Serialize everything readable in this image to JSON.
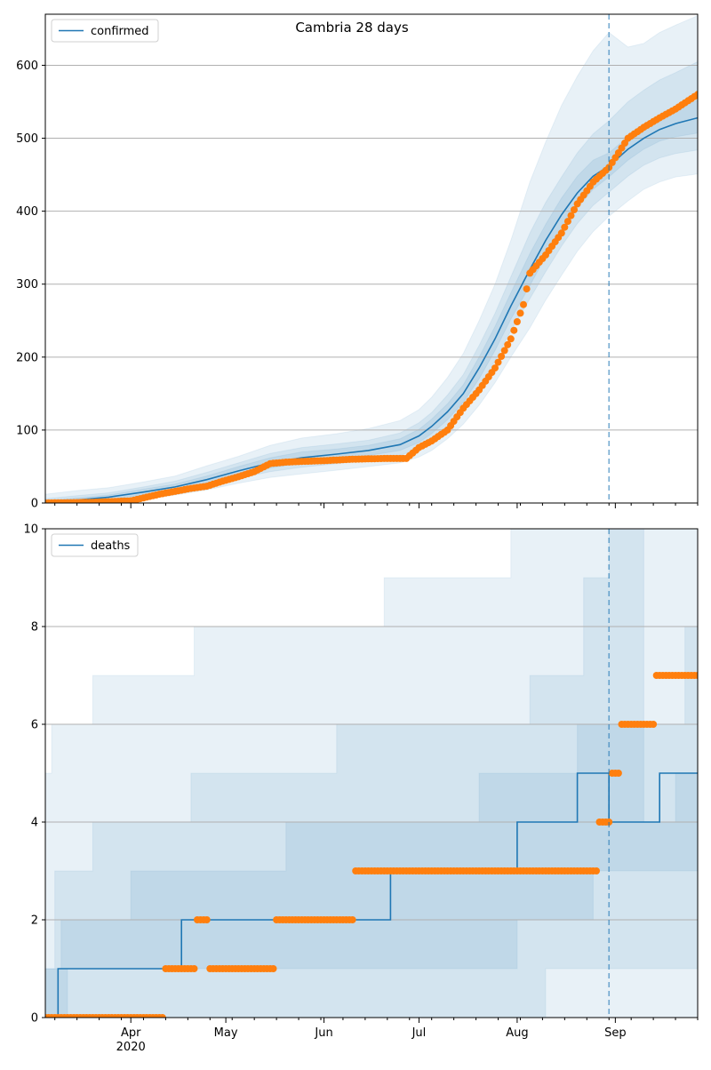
{
  "title": "Cambria 28 days",
  "colors": {
    "model": "#1f77b4",
    "band": "#1f77b4",
    "observed": "#ff7f0e",
    "grid": "#b0b0b0"
  },
  "x_axis": {
    "ticks": [
      {
        "date": "2020-04-01",
        "label": "Apr"
      },
      {
        "date": "2020-05-01",
        "label": "May"
      },
      {
        "date": "2020-06-01",
        "label": "Jun"
      },
      {
        "date": "2020-07-01",
        "label": "Jul"
      },
      {
        "date": "2020-08-01",
        "label": "Aug"
      },
      {
        "date": "2020-09-01",
        "label": "Sep"
      }
    ],
    "year_label": "2020",
    "range": [
      "2020-03-05",
      "2020-09-27"
    ],
    "vline_date": "2020-08-30"
  },
  "chart_data": [
    {
      "type": "line",
      "legend": "confirmed",
      "legend_position": "top-left",
      "ylim": [
        0,
        670
      ],
      "yticks": [
        0,
        100,
        200,
        300,
        400,
        500,
        600
      ],
      "grid": "horizontal",
      "model": {
        "x": [
          "2020-03-05",
          "2020-03-15",
          "2020-03-25",
          "2020-04-05",
          "2020-04-15",
          "2020-04-25",
          "2020-05-05",
          "2020-05-15",
          "2020-05-25",
          "2020-06-05",
          "2020-06-15",
          "2020-06-25",
          "2020-07-01",
          "2020-07-05",
          "2020-07-10",
          "2020-07-15",
          "2020-07-20",
          "2020-07-25",
          "2020-07-30",
          "2020-08-05",
          "2020-08-10",
          "2020-08-15",
          "2020-08-20",
          "2020-08-25",
          "2020-08-30",
          "2020-09-05",
          "2020-09-10",
          "2020-09-15",
          "2020-09-20",
          "2020-09-27"
        ],
        "y": [
          0,
          4,
          8,
          15,
          22,
          32,
          44,
          55,
          62,
          67,
          72,
          80,
          92,
          105,
          125,
          150,
          185,
          225,
          270,
          320,
          360,
          395,
          425,
          448,
          462,
          485,
          500,
          512,
          520,
          528
        ]
      },
      "bands": [
        {
          "lo": [
            0,
            0,
            1,
            5,
            11,
            18,
            27,
            35,
            40,
            45,
            50,
            55,
            63,
            72,
            88,
            108,
            134,
            165,
            200,
            240,
            278,
            312,
            345,
            372,
            393,
            414,
            430,
            440,
            447,
            451
          ],
          "hi": [
            12,
            17,
            21,
            29,
            37,
            51,
            64,
            79,
            89,
            95,
            102,
            113,
            128,
            145,
            172,
            205,
            250,
            300,
            360,
            440,
            495,
            545,
            585,
            620,
            645,
            625,
            630,
            645,
            655,
            668
          ]
        },
        {
          "lo": [
            0,
            0,
            3,
            8,
            15,
            23,
            34,
            43,
            49,
            54,
            59,
            65,
            75,
            86,
            104,
            128,
            158,
            195,
            236,
            280,
            317,
            352,
            383,
            408,
            426,
            448,
            463,
            473,
            479,
            484
          ],
          "hi": [
            6,
            10,
            14,
            22,
            30,
            42,
            55,
            68,
            76,
            81,
            86,
            96,
            110,
            124,
            148,
            176,
            216,
            260,
            310,
            370,
            412,
            447,
            480,
            506,
            524,
            550,
            566,
            580,
            590,
            605
          ]
        },
        {
          "lo": [
            0,
            1,
            5,
            11,
            18,
            27,
            38,
            48,
            55,
            60,
            65,
            72,
            83,
            95,
            114,
            138,
            170,
            209,
            252,
            298,
            338,
            373,
            405,
            430,
            447,
            470,
            485,
            496,
            502,
            507
          ],
          "hi": [
            3,
            7,
            11,
            19,
            26,
            37,
            50,
            62,
            70,
            74,
            79,
            88,
            101,
            115,
            136,
            162,
            200,
            242,
            288,
            342,
            382,
            418,
            448,
            470,
            480,
            502,
            518,
            530,
            540,
            552
          ]
        }
      ],
      "observed": {
        "x": [
          "2020-03-05",
          "2020-03-20",
          "2020-04-01",
          "2020-04-05",
          "2020-04-10",
          "2020-04-15",
          "2020-04-20",
          "2020-04-25",
          "2020-04-30",
          "2020-05-05",
          "2020-05-10",
          "2020-05-15",
          "2020-05-20",
          "2020-05-25",
          "2020-06-01",
          "2020-06-10",
          "2020-06-20",
          "2020-06-27",
          "2020-07-01",
          "2020-07-05",
          "2020-07-10",
          "2020-07-15",
          "2020-07-20",
          "2020-07-25",
          "2020-07-30",
          "2020-08-03",
          "2020-08-05",
          "2020-08-10",
          "2020-08-15",
          "2020-08-20",
          "2020-08-25",
          "2020-08-30",
          "2020-09-05",
          "2020-09-10",
          "2020-09-15",
          "2020-09-20",
          "2020-09-27"
        ],
        "y": [
          0,
          1,
          3,
          7,
          12,
          16,
          20,
          23,
          30,
          36,
          43,
          54,
          56,
          57,
          58,
          60,
          61,
          61,
          76,
          85,
          100,
          130,
          155,
          185,
          225,
          272,
          315,
          340,
          370,
          410,
          440,
          460,
          500,
          515,
          528,
          540,
          560
        ]
      }
    },
    {
      "type": "line",
      "legend": "deaths",
      "legend_position": "top-left",
      "ylim": [
        0,
        10
      ],
      "yticks": [
        0,
        2,
        4,
        6,
        8,
        10
      ],
      "grid": "horizontal",
      "model": {
        "steps": [
          {
            "date": "2020-03-05",
            "y": 0
          },
          {
            "date": "2020-03-09",
            "y": 1
          },
          {
            "date": "2020-04-17",
            "y": 2
          },
          {
            "date": "2020-06-22",
            "y": 3
          },
          {
            "date": "2020-08-01",
            "y": 4
          },
          {
            "date": "2020-08-20",
            "y": 5
          },
          {
            "date": "2020-08-30",
            "y": 4
          },
          {
            "date": "2020-09-15",
            "y": 5
          }
        ]
      },
      "bands": [
        {
          "steps_lo": [
            [
              "2020-03-05",
              0
            ],
            [
              "2020-07-25",
              0
            ],
            [
              "2020-08-30",
              0
            ],
            [
              "2020-09-27",
              0
            ]
          ],
          "steps_hi": [
            [
              "2020-03-05",
              5
            ],
            [
              "2020-03-07",
              6
            ],
            [
              "2020-03-20",
              7
            ],
            [
              "2020-04-21",
              8
            ],
            [
              "2020-06-20",
              9
            ],
            [
              "2020-07-10",
              9
            ],
            [
              "2020-07-30",
              10
            ],
            [
              "2020-08-30",
              10
            ],
            [
              "2020-09-27",
              10
            ]
          ]
        },
        {
          "steps_lo": [
            [
              "2020-03-05",
              0
            ],
            [
              "2020-06-25",
              0
            ],
            [
              "2020-08-10",
              1
            ],
            [
              "2020-08-30",
              1
            ],
            [
              "2020-09-27",
              1
            ]
          ],
          "steps_hi": [
            [
              "2020-03-05",
              1
            ],
            [
              "2020-03-08",
              3
            ],
            [
              "2020-03-20",
              4
            ],
            [
              "2020-04-20",
              5
            ],
            [
              "2020-06-05",
              6
            ],
            [
              "2020-08-05",
              7
            ],
            [
              "2020-08-22",
              9
            ],
            [
              "2020-08-30",
              10
            ],
            [
              "2020-09-10",
              6
            ],
            [
              "2020-09-23",
              8
            ],
            [
              "2020-09-27",
              8
            ]
          ]
        },
        {
          "steps_lo": [
            [
              "2020-03-05",
              0
            ],
            [
              "2020-03-12",
              1
            ],
            [
              "2020-04-20",
              1
            ],
            [
              "2020-05-20",
              1
            ],
            [
              "2020-07-25",
              1
            ],
            [
              "2020-08-01",
              2
            ],
            [
              "2020-08-25",
              3
            ],
            [
              "2020-08-30",
              3
            ],
            [
              "2020-09-27",
              4
            ]
          ],
          "steps_hi": [
            [
              "2020-03-05",
              1
            ],
            [
              "2020-03-10",
              2
            ],
            [
              "2020-04-01",
              3
            ],
            [
              "2020-05-20",
              4
            ],
            [
              "2020-07-10",
              4
            ],
            [
              "2020-07-20",
              5
            ],
            [
              "2020-08-20",
              6
            ],
            [
              "2020-08-30",
              6
            ],
            [
              "2020-09-10",
              4
            ],
            [
              "2020-09-20",
              5
            ],
            [
              "2020-09-27",
              5
            ]
          ]
        }
      ],
      "observed": {
        "x": [
          "2020-03-05",
          "2020-04-06",
          "2020-04-12",
          "2020-04-22",
          "2020-04-26",
          "2020-05-10",
          "2020-05-17",
          "2020-05-25",
          "2020-06-05",
          "2020-06-11",
          "2020-06-25",
          "2020-07-15",
          "2020-08-10",
          "2020-08-25",
          "2020-08-27",
          "2020-08-31",
          "2020-09-03",
          "2020-09-10",
          "2020-09-14",
          "2020-09-20",
          "2020-09-27"
        ],
        "y": [
          0,
          0,
          1,
          2,
          1,
          1,
          2,
          2,
          2,
          3,
          3,
          3,
          3,
          3,
          4,
          5,
          6,
          6,
          7,
          7,
          7
        ]
      }
    }
  ],
  "legend_labels": {
    "confirmed": "confirmed",
    "deaths": "deaths"
  }
}
